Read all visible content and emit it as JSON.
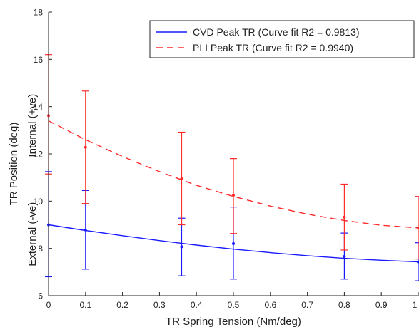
{
  "chart_data": {
    "type": "line",
    "title": "",
    "xlabel": "TR Spring Tension (Nm/deg)",
    "ylabel": "TR Position (deg)",
    "ylabel_upper": "Internal (+ve)",
    "ylabel_lower": "External (-ve)",
    "xlim": [
      0,
      1
    ],
    "ylim": [
      6,
      18
    ],
    "x_ticks": [
      0,
      0.1,
      0.2,
      0.3,
      0.4,
      0.5,
      0.6,
      0.7,
      0.8,
      0.9,
      1
    ],
    "x_tick_labels": [
      "0",
      "0.1",
      "0.2",
      "0.3",
      "0.4",
      "0.5",
      "0.6",
      "0.7",
      "0.8",
      "0.9",
      "1"
    ],
    "y_ticks": [
      6,
      8,
      10,
      12,
      14,
      16,
      18
    ],
    "y_tick_labels": [
      "6",
      "8",
      "10",
      "12",
      "14",
      "16",
      "18"
    ],
    "grid": false,
    "legend_position": "top-right",
    "series": [
      {
        "name": "CVD Peak TR (Curve fit R2 = 0.9813)",
        "color": "#1a1aff",
        "line_style": "solid",
        "fit": {
          "x": [
            0,
            0.1,
            0.2,
            0.3,
            0.4,
            0.5,
            0.6,
            0.7,
            0.8,
            0.9,
            1
          ],
          "y": [
            9.0,
            8.76,
            8.54,
            8.33,
            8.14,
            7.97,
            7.82,
            7.69,
            7.58,
            7.5,
            7.43
          ]
        },
        "points": [
          {
            "x": 0,
            "y": 9.0,
            "lower": 6.8,
            "upper": 11.25
          },
          {
            "x": 0.1,
            "y": 8.78,
            "lower": 7.12,
            "upper": 10.45
          },
          {
            "x": 0.36,
            "y": 8.07,
            "lower": 6.84,
            "upper": 9.28
          },
          {
            "x": 0.5,
            "y": 8.2,
            "lower": 6.7,
            "upper": 9.75
          },
          {
            "x": 0.8,
            "y": 7.66,
            "lower": 6.7,
            "upper": 8.65
          },
          {
            "x": 1,
            "y": 7.43,
            "lower": 6.63,
            "upper": 8.24
          }
        ]
      },
      {
        "name": "PLI Peak TR (Curve fit R2 = 0.9940)",
        "color": "#ff2a2a",
        "line_style": "dashed",
        "fit": {
          "x": [
            0,
            0.1,
            0.2,
            0.3,
            0.4,
            0.5,
            0.6,
            0.7,
            0.8,
            0.9,
            1
          ],
          "y": [
            13.4,
            12.6,
            11.89,
            11.25,
            10.67,
            10.2,
            9.79,
            9.45,
            9.18,
            8.98,
            8.87
          ]
        },
        "points": [
          {
            "x": 0,
            "y": 13.62,
            "lower": 11.15,
            "upper": 16.2
          },
          {
            "x": 0.1,
            "y": 12.28,
            "lower": 9.9,
            "upper": 14.66
          },
          {
            "x": 0.36,
            "y": 10.95,
            "lower": 9.0,
            "upper": 12.92
          },
          {
            "x": 0.5,
            "y": 10.25,
            "lower": 8.63,
            "upper": 11.8
          },
          {
            "x": 0.8,
            "y": 9.32,
            "lower": 7.93,
            "upper": 10.72
          },
          {
            "x": 1,
            "y": 8.87,
            "lower": 7.55,
            "upper": 10.2
          }
        ]
      }
    ]
  }
}
